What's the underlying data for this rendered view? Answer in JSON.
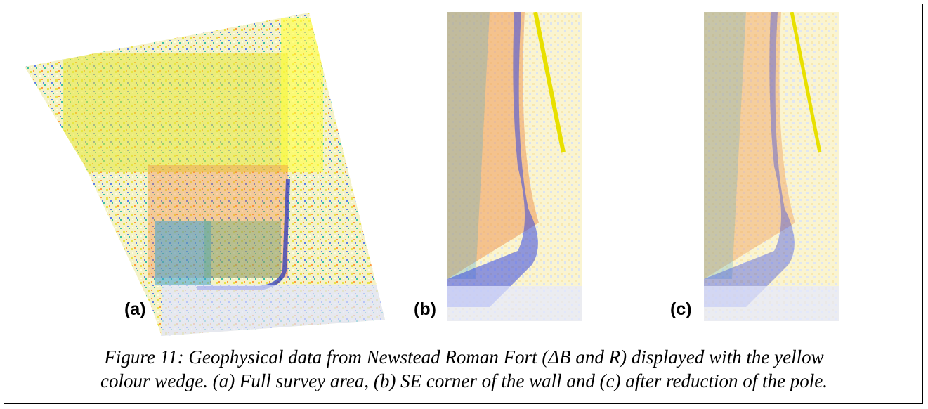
{
  "figure": {
    "panels": [
      {
        "label": "(a)"
      },
      {
        "label": "(b)"
      },
      {
        "label": "(c)"
      }
    ]
  },
  "caption": {
    "lines": [
      "Figure 11: Geophysical data from Newstead Roman Fort (ΔB and R) displayed with the yellow",
      "colour wedge. (a) Full survey area, (b) SE corner of the wall and (c) after reduction of the pole."
    ]
  }
}
